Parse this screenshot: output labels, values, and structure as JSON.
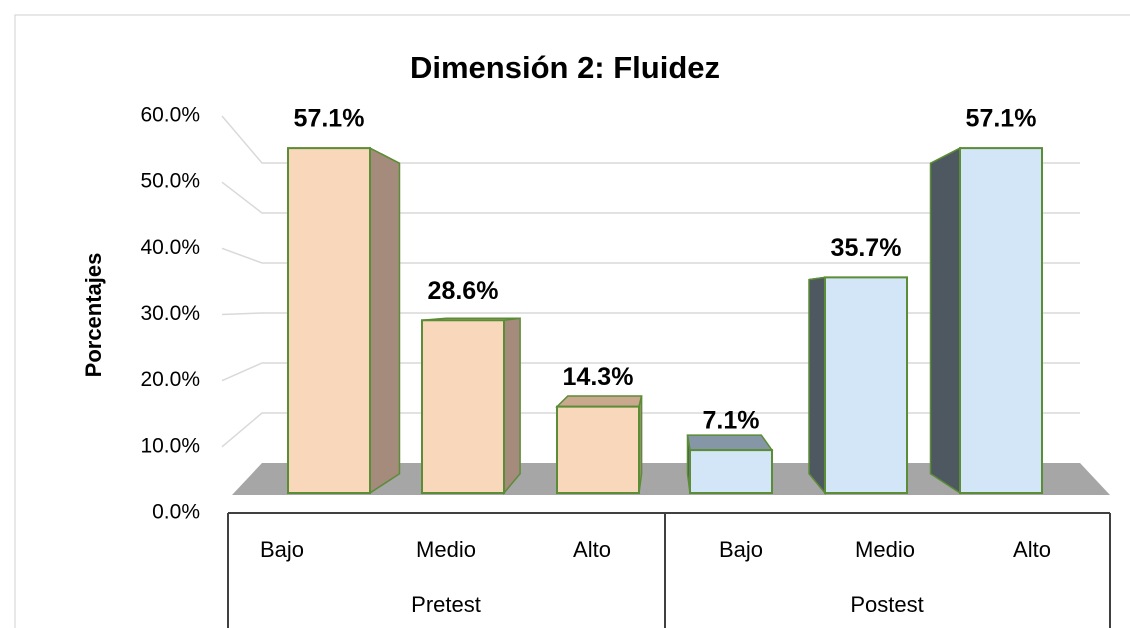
{
  "chart_data": {
    "type": "bar3d",
    "title": "Dimensión 2: Fluidez",
    "y_axis_label": "Porcentajes",
    "categories": [
      "Bajo",
      "Medio",
      "Alto",
      "Bajo",
      "Medio",
      "Alto"
    ],
    "groups": [
      "Pretest",
      "Postest"
    ],
    "colors": [
      "#f9d7bb",
      "#d3e6f7"
    ],
    "side_colors": [
      "#a48b7b",
      "#4d5860"
    ],
    "values": [
      57.1,
      28.6,
      14.3,
      7.1,
      35.7,
      57.1
    ],
    "value_labels": [
      "57.1%",
      "28.6%",
      "14.3%",
      "7.1%",
      "35.7%",
      "57.1%"
    ],
    "ylim": [
      0,
      60
    ],
    "yticks": [
      {
        "value": 0,
        "label": "0.0%"
      },
      {
        "value": 10,
        "label": "10.0%"
      },
      {
        "value": 20,
        "label": "20.0%"
      },
      {
        "value": 30,
        "label": "30.0%"
      },
      {
        "value": 40,
        "label": "40.0%"
      },
      {
        "value": 50,
        "label": "50.0%"
      },
      {
        "value": 60,
        "label": "60.0%"
      }
    ],
    "grid": true
  }
}
